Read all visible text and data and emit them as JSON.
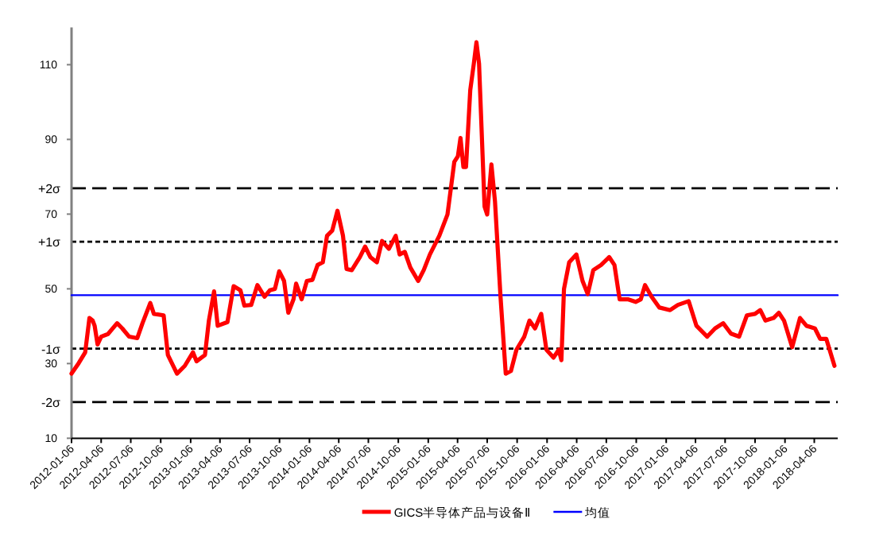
{
  "chart_data": {
    "type": "line",
    "legend": "bottom",
    "xlim": [
      "2012-01-06",
      "2018-06-17"
    ],
    "ylim": [
      10,
      120
    ],
    "yticks": [
      10,
      30,
      50,
      70,
      90,
      110
    ],
    "xticks": [
      "2012-01-06",
      "2012-04-06",
      "2012-07-06",
      "2012-10-06",
      "2013-01-06",
      "2013-04-06",
      "2013-07-06",
      "2013-10-06",
      "2014-01-06",
      "2014-04-06",
      "2014-07-06",
      "2014-10-06",
      "2015-01-06",
      "2015-04-06",
      "2015-07-06",
      "2015-10-06",
      "2016-01-06",
      "2016-04-06",
      "2016-07-06",
      "2016-10-06",
      "2017-01-06",
      "2017-04-06",
      "2017-07-06",
      "2017-10-06",
      "2018-01-06",
      "2018-04-06"
    ],
    "ref_lines": [
      {
        "axis": "y",
        "value": 76.9,
        "label": "+2σ",
        "color": "#000000",
        "line_style": "dashed"
      },
      {
        "axis": "y",
        "value": 62.6,
        "label": "+1σ",
        "color": "#000000",
        "line_style": "dotted"
      },
      {
        "axis": "y",
        "value": 34.0,
        "label": "-1σ",
        "color": "#000000",
        "line_style": "dotted"
      },
      {
        "axis": "y",
        "value": 19.7,
        "label": "-2σ",
        "color": "#000000",
        "line_style": "dashed"
      }
    ],
    "series": [
      {
        "name": "GICS半导体产品与设备Ⅱ",
        "color": "#ff0000",
        "x": [
          "2012-01-06",
          "2012-01-28",
          "2012-02-17",
          "2012-03-01",
          "2012-03-11",
          "2012-03-17",
          "2012-03-26",
          "2012-04-06",
          "2012-04-27",
          "2012-05-25",
          "2012-06-10",
          "2012-07-01",
          "2012-07-26",
          "2012-08-11",
          "2012-09-04",
          "2012-09-15",
          "2012-10-15",
          "2012-10-28",
          "2012-11-25",
          "2012-12-19",
          "2013-01-13",
          "2013-01-24",
          "2013-02-19",
          "2013-03-03",
          "2013-03-19",
          "2013-03-30",
          "2013-04-29",
          "2013-05-18",
          "2013-06-08",
          "2013-06-20",
          "2013-07-11",
          "2013-07-30",
          "2013-08-21",
          "2013-09-06",
          "2013-09-22",
          "2013-10-05",
          "2013-10-20",
          "2013-11-02",
          "2013-11-18",
          "2013-11-26",
          "2013-12-13",
          "2013-12-29",
          "2014-01-15",
          "2014-01-31",
          "2014-02-16",
          "2014-03-01",
          "2014-03-17",
          "2014-04-02",
          "2014-04-19",
          "2014-04-30",
          "2014-05-16",
          "2014-06-10",
          "2014-06-26",
          "2014-07-12",
          "2014-08-01",
          "2014-08-17",
          "2014-09-07",
          "2014-09-28",
          "2014-10-10",
          "2014-10-26",
          "2014-11-12",
          "2014-12-06",
          "2014-12-23",
          "2015-01-11",
          "2015-02-09",
          "2015-03-06",
          "2015-03-27",
          "2015-04-07",
          "2015-04-15",
          "2015-04-24",
          "2015-05-02",
          "2015-05-15",
          "2015-05-26",
          "2015-06-03",
          "2015-06-11",
          "2015-06-28",
          "2015-07-06",
          "2015-07-19",
          "2015-07-30",
          "2015-08-16",
          "2015-09-01",
          "2015-09-17",
          "2015-10-04",
          "2015-10-28",
          "2015-11-13",
          "2015-11-30",
          "2015-12-19",
          "2016-01-04",
          "2016-01-26",
          "2016-02-11",
          "2016-02-19",
          "2016-02-27",
          "2016-03-14",
          "2016-04-05",
          "2016-04-24",
          "2016-05-10",
          "2016-05-27",
          "2016-06-20",
          "2016-07-15",
          "2016-07-31",
          "2016-08-16",
          "2016-09-10",
          "2016-10-04",
          "2016-10-20",
          "2016-11-02",
          "2016-11-22",
          "2016-12-16",
          "2017-01-18",
          "2017-02-11",
          "2017-03-16",
          "2017-04-09",
          "2017-05-12",
          "2017-06-05",
          "2017-06-30",
          "2017-07-24",
          "2017-08-18",
          "2017-09-11",
          "2017-10-06",
          "2017-10-22",
          "2017-11-07",
          "2017-12-02",
          "2017-12-18",
          "2018-01-03",
          "2018-01-28",
          "2018-02-21",
          "2018-03-13",
          "2018-04-08",
          "2018-04-24",
          "2018-05-13",
          "2018-06-07"
        ],
        "values": [
          27.3,
          30.1,
          33.0,
          42.2,
          41.5,
          40.1,
          35.1,
          37.2,
          37.9,
          40.8,
          39.4,
          37.2,
          36.8,
          40.8,
          46.2,
          43.3,
          42.9,
          32.3,
          27.3,
          29.4,
          33.0,
          30.6,
          32.3,
          41.5,
          49.3,
          40.1,
          41.1,
          50.7,
          49.6,
          45.5,
          45.7,
          51.0,
          47.9,
          49.6,
          50.0,
          54.7,
          52.1,
          43.6,
          47.2,
          51.4,
          47.2,
          52.1,
          52.4,
          56.4,
          57.1,
          64.2,
          65.6,
          70.9,
          64.2,
          55.3,
          55.0,
          58.5,
          61.3,
          58.5,
          57.1,
          62.8,
          60.7,
          64.2,
          59.2,
          59.9,
          55.7,
          52.1,
          55.0,
          59.2,
          64.2,
          69.9,
          84.0,
          85.5,
          90.4,
          82.6,
          82.6,
          103.2,
          110.3,
          116.0,
          110.3,
          72.0,
          69.9,
          83.3,
          73.4,
          47.9,
          27.3,
          28.0,
          33.7,
          37.2,
          41.5,
          39.4,
          43.3,
          33.7,
          31.6,
          33.7,
          30.9,
          50.0,
          57.1,
          59.2,
          52.1,
          48.6,
          55.0,
          56.4,
          58.5,
          56.4,
          47.2,
          47.2,
          46.5,
          47.2,
          51.0,
          47.9,
          45.0,
          44.3,
          45.7,
          46.7,
          40.1,
          37.2,
          39.4,
          40.8,
          38.0,
          37.2,
          42.9,
          43.3,
          44.3,
          41.5,
          42.2,
          43.6,
          41.5,
          34.4,
          42.2,
          40.1,
          39.4,
          36.6,
          36.6,
          29.4
        ]
      },
      {
        "name": "均值",
        "color": "#0000ff",
        "x": [
          "2012-01-06",
          "2018-06-17"
        ],
        "values": [
          48.3,
          48.3
        ]
      }
    ]
  }
}
